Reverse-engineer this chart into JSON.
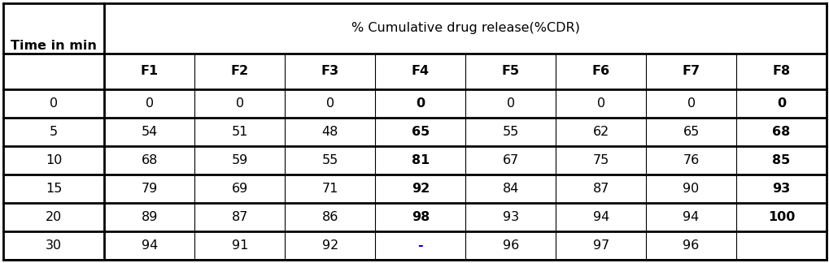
{
  "header1_left": "Time in min",
  "header1_right": "% Cumulative drug release(%CDR)",
  "col_headers": [
    "F1",
    "F2",
    "F3",
    "F4",
    "F5",
    "F6",
    "F7",
    "F8"
  ],
  "time_values": [
    "0",
    "5",
    "10",
    "15",
    "20",
    "30"
  ],
  "rows": [
    [
      "0",
      "0",
      "0",
      "0",
      "0",
      "0",
      "0",
      "0"
    ],
    [
      "54",
      "51",
      "48",
      "65",
      "55",
      "62",
      "65",
      "68"
    ],
    [
      "68",
      "59",
      "55",
      "81",
      "67",
      "75",
      "76",
      "85"
    ],
    [
      "79",
      "69",
      "71",
      "92",
      "84",
      "87",
      "90",
      "93"
    ],
    [
      "89",
      "87",
      "86",
      "98",
      "93",
      "94",
      "94",
      "100"
    ],
    [
      "94",
      "91",
      "92",
      "-",
      "96",
      "97",
      "96",
      ""
    ]
  ],
  "bold_data_cols": [
    3,
    7
  ],
  "dash_color": "#0000cc",
  "fig_width": 10.2,
  "fig_height": 3.24,
  "dpi": 100,
  "font_size": 11.5,
  "header_font_size": 11.5
}
